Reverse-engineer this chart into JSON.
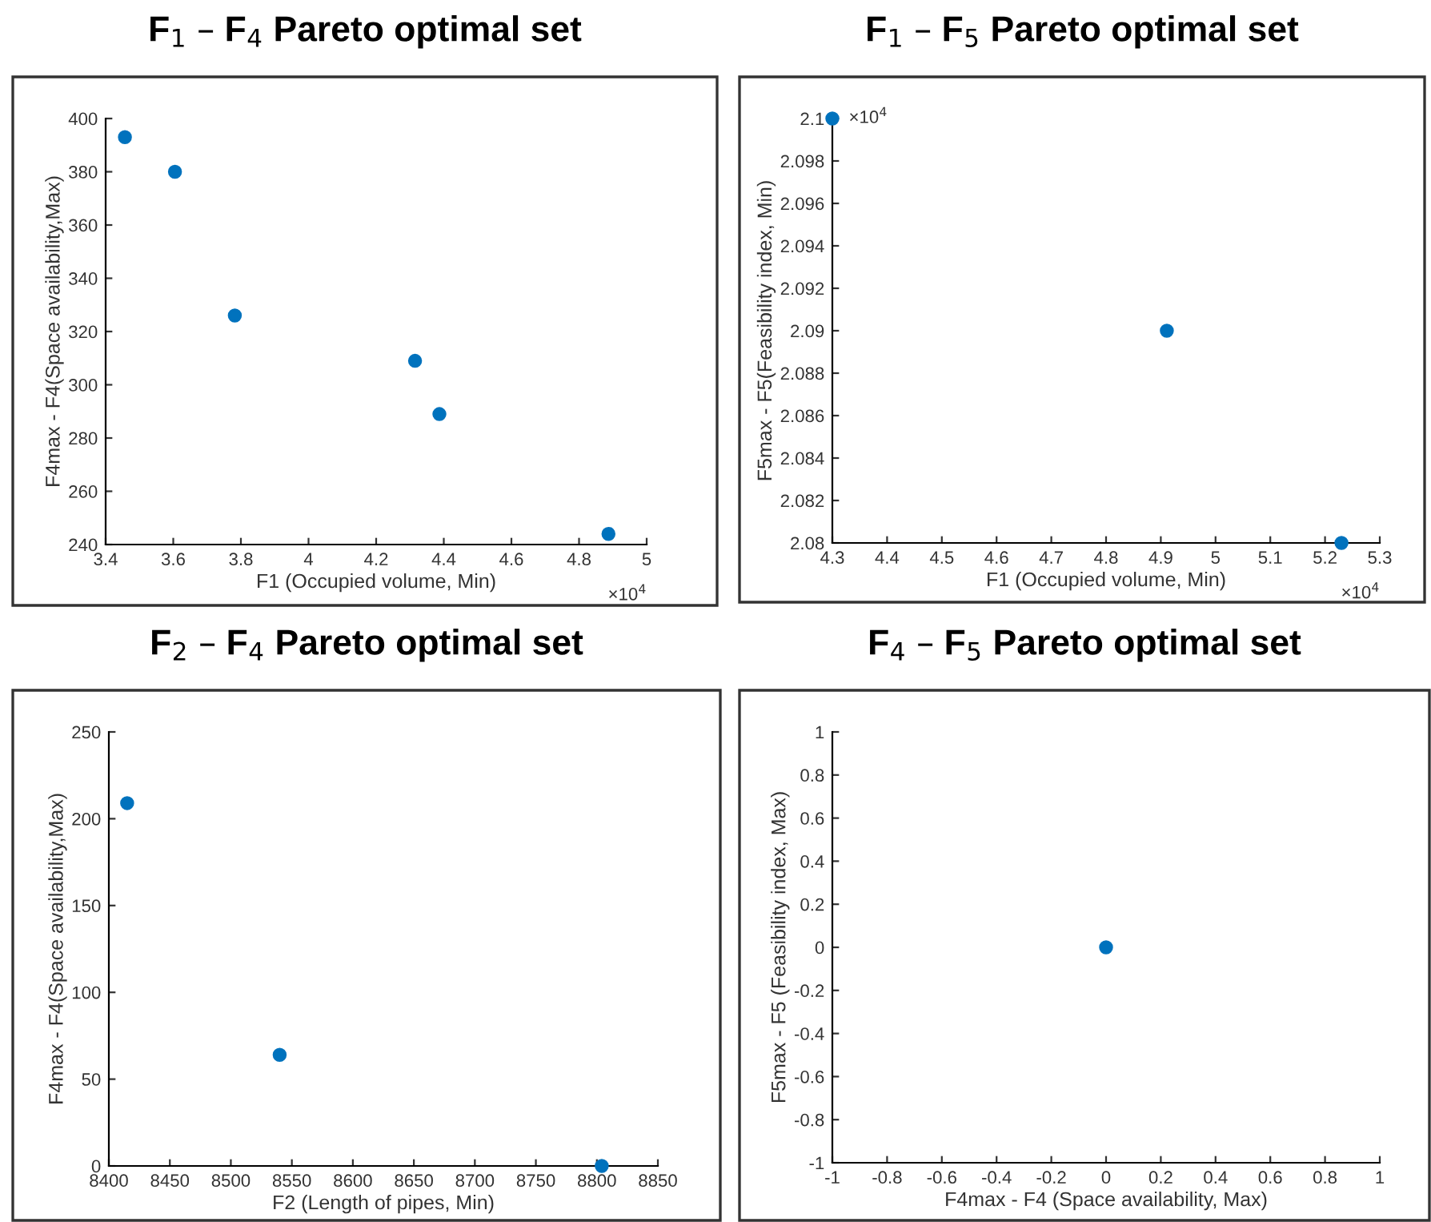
{
  "chart_data": [
    {
      "type": "scatter",
      "title": "F$_{1}$ – F$_{4}$ Pareto optimal set",
      "xlabel": "F1 (Occupied volume, Min)",
      "ylabel": "F4max - F4(Space availability,Max)",
      "color": "#0072bd",
      "marker": "circle",
      "x": [
        3.457,
        3.605,
        3.782,
        4.315,
        4.387,
        4.887
      ],
      "values": [
        393,
        380,
        326,
        309,
        289,
        244
      ],
      "xlim": [
        3.4,
        5
      ],
      "xticks": [
        3.4,
        3.6,
        3.8,
        4,
        4.2,
        4.4,
        4.6,
        4.8,
        5
      ],
      "ylim": [
        240,
        400
      ],
      "yticks": [
        240,
        260,
        280,
        300,
        320,
        340,
        360,
        380,
        400
      ],
      "annotations": [
        "×10$^{4}$"
      ]
    },
    {
      "type": "scatter",
      "title": "F$_{1}$ – F$_{5}$ Pareto optimal set",
      "xlabel": "F1 (Occupied volume, Min)",
      "ylabel": "F5max - F5(Feasibility index, Min)",
      "color": "#0072bd",
      "marker": "circle",
      "x": [
        4.3,
        4.911,
        5.23
      ],
      "values": [
        2.1,
        2.09,
        2.08
      ],
      "xlim": [
        4.3,
        5.3
      ],
      "xticks": [
        4.3,
        4.4,
        4.5,
        4.6,
        4.7,
        4.8,
        4.9,
        5,
        5.1,
        5.2,
        5.3
      ],
      "ylim": [
        2.08,
        2.1
      ],
      "yticks": [
        2.08,
        2.082,
        2.084,
        2.086,
        2.088,
        2.09,
        2.092,
        2.094,
        2.096,
        2.098,
        2.1
      ],
      "annotations": [
        "×10$^{4}$",
        "×10$^{4}$"
      ]
    },
    {
      "type": "scatter",
      "title": "F$_{2}$ – F$_{4}$ Pareto optimal set",
      "xlabel": "F2 (Length of pipes, Min)",
      "ylabel": "F4max - F4(Space availability,Max)",
      "color": "#0072bd",
      "marker": "circle",
      "x": [
        8415,
        8540,
        8804
      ],
      "values": [
        209,
        64,
        0
      ],
      "xlim": [
        8400,
        8850
      ],
      "xticks": [
        8400,
        8450,
        8500,
        8550,
        8600,
        8650,
        8700,
        8750,
        8800,
        8850
      ],
      "ylim": [
        0,
        250
      ],
      "yticks": [
        0,
        50,
        100,
        150,
        200,
        250
      ]
    },
    {
      "type": "scatter",
      "title": "F$_{4}$ – F$_{5}$ Pareto optimal set",
      "xlabel": "F4max - F4 (Space availability, Max)",
      "ylabel": "F5max - F5 (Feasibility index, Max)",
      "color": "#0072bd",
      "marker": "circle",
      "x": [
        0
      ],
      "values": [
        0
      ],
      "xlim": [
        -1,
        1
      ],
      "xticks": [
        -1,
        -0.8,
        -0.6,
        -0.4,
        -0.2,
        0,
        0.2,
        0.4,
        0.6,
        0.8,
        1
      ],
      "ylim": [
        -1,
        1
      ],
      "yticks": [
        -1,
        -0.8,
        -0.6,
        -0.4,
        -0.2,
        0,
        0.2,
        0.4,
        0.6,
        0.8,
        1
      ]
    }
  ]
}
